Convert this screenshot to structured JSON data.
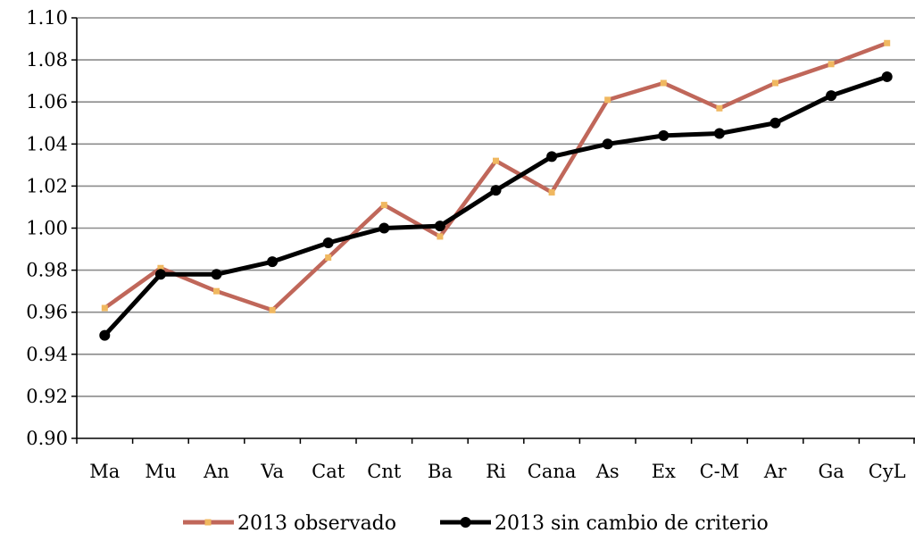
{
  "chart_data": {
    "type": "line",
    "title": "",
    "xlabel": "",
    "ylabel": "",
    "categories": [
      "Ma",
      "Mu",
      "An",
      "Va",
      "Cat",
      "Cnt",
      "Ba",
      "Ri",
      "Cana",
      "As",
      "Ex",
      "C-M",
      "Ar",
      "Ga",
      "CyL"
    ],
    "ylim": [
      0.9,
      1.1
    ],
    "yticks": [
      "0.90",
      "0.92",
      "0.94",
      "0.96",
      "0.98",
      "1.00",
      "1.02",
      "1.04",
      "1.06",
      "1.08",
      "1.10"
    ],
    "grid": true,
    "legend_position": "bottom",
    "series": [
      {
        "name": "2013 observado",
        "color": "#c0675a",
        "marker_color": "#f0b860",
        "values": [
          0.962,
          0.981,
          0.97,
          0.961,
          0.986,
          1.011,
          0.996,
          1.032,
          1.017,
          1.061,
          1.069,
          1.057,
          1.069,
          1.078,
          1.088
        ]
      },
      {
        "name": "2013 sin cambio de criterio",
        "color": "#000000",
        "marker_color": "#000000",
        "values": [
          0.949,
          0.978,
          0.978,
          0.984,
          0.993,
          1.0,
          1.001,
          1.018,
          1.034,
          1.04,
          1.044,
          1.045,
          1.05,
          1.063,
          1.072
        ]
      }
    ]
  }
}
